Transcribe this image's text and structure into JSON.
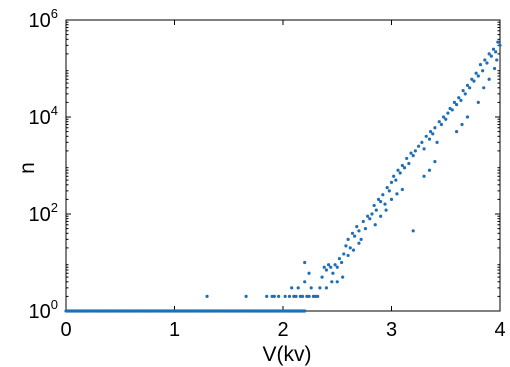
{
  "chart_data": {
    "type": "scatter",
    "title": "",
    "xlabel": "V(kv)",
    "ylabel": "n",
    "xlim": [
      0,
      4
    ],
    "ylim": [
      1,
      1000000
    ],
    "yscale": "log",
    "grid": false,
    "marker_color": "#1f6fb5",
    "xticks": [
      {
        "value": 0,
        "label": "0"
      },
      {
        "value": 1,
        "label": "1"
      },
      {
        "value": 2,
        "label": "2"
      },
      {
        "value": 3,
        "label": "3"
      },
      {
        "value": 4,
        "label": "4"
      }
    ],
    "yticks": [
      {
        "value": 1,
        "base": "10",
        "exp": "0"
      },
      {
        "value": 100,
        "base": "10",
        "exp": "2"
      },
      {
        "value": 10000,
        "base": "10",
        "exp": "4"
      },
      {
        "value": 1000000,
        "base": "10",
        "exp": "6"
      }
    ],
    "baseline": {
      "y": 1,
      "x_from": 0,
      "x_to": 2.2,
      "step": 0.01
    },
    "points": [
      [
        1.3,
        2
      ],
      [
        1.66,
        2
      ],
      [
        1.85,
        2
      ],
      [
        1.9,
        2
      ],
      [
        1.92,
        2
      ],
      [
        1.96,
        2
      ],
      [
        2.02,
        2
      ],
      [
        2.06,
        2
      ],
      [
        2.08,
        3
      ],
      [
        2.1,
        2
      ],
      [
        2.12,
        2
      ],
      [
        2.14,
        3
      ],
      [
        2.16,
        2
      ],
      [
        2.18,
        2
      ],
      [
        2.2,
        4
      ],
      [
        2.22,
        2
      ],
      [
        2.24,
        2
      ],
      [
        2.26,
        3
      ],
      [
        2.28,
        2
      ],
      [
        2.3,
        2
      ],
      [
        2.32,
        2
      ],
      [
        2.34,
        3
      ],
      [
        2.2,
        10
      ],
      [
        2.24,
        6
      ],
      [
        2.36,
        5
      ],
      [
        2.38,
        8
      ],
      [
        2.4,
        7
      ],
      [
        2.42,
        9
      ],
      [
        2.44,
        8
      ],
      [
        2.46,
        6
      ],
      [
        2.48,
        9
      ],
      [
        2.5,
        8
      ],
      [
        2.52,
        12
      ],
      [
        2.54,
        10
      ],
      [
        2.56,
        15
      ],
      [
        2.4,
        3
      ],
      [
        2.45,
        4
      ],
      [
        2.5,
        4
      ],
      [
        2.55,
        5
      ],
      [
        2.58,
        22
      ],
      [
        2.6,
        30
      ],
      [
        2.62,
        20
      ],
      [
        2.64,
        40
      ],
      [
        2.66,
        35
      ],
      [
        2.68,
        55
      ],
      [
        2.7,
        45
      ],
      [
        2.72,
        30
      ],
      [
        2.74,
        70
      ],
      [
        2.76,
        50
      ],
      [
        2.78,
        90
      ],
      [
        2.8,
        80
      ],
      [
        2.6,
        14
      ],
      [
        2.65,
        18
      ],
      [
        2.7,
        25
      ],
      [
        2.82,
        100
      ],
      [
        2.84,
        150
      ],
      [
        2.86,
        120
      ],
      [
        2.88,
        200
      ],
      [
        2.9,
        180
      ],
      [
        2.92,
        250
      ],
      [
        2.94,
        160
      ],
      [
        2.96,
        350
      ],
      [
        2.98,
        300
      ],
      [
        3.0,
        450
      ],
      [
        2.85,
        60
      ],
      [
        2.9,
        90
      ],
      [
        2.95,
        120
      ],
      [
        3.0,
        200
      ],
      [
        3.05,
        260
      ],
      [
        3.1,
        320
      ],
      [
        3.02,
        600
      ],
      [
        3.04,
        500
      ],
      [
        3.06,
        800
      ],
      [
        3.08,
        700
      ],
      [
        3.1,
        1000
      ],
      [
        3.12,
        900
      ],
      [
        3.14,
        1400
      ],
      [
        3.16,
        1100
      ],
      [
        3.18,
        1800
      ],
      [
        3.2,
        1600
      ],
      [
        3.22,
        2000
      ],
      [
        3.2,
        45
      ],
      [
        3.25,
        2500
      ],
      [
        3.28,
        3000
      ],
      [
        3.3,
        2200
      ],
      [
        3.32,
        4000
      ],
      [
        3.35,
        3500
      ],
      [
        3.36,
        5000
      ],
      [
        3.38,
        4500
      ],
      [
        3.4,
        6000
      ],
      [
        3.42,
        3000
      ],
      [
        3.44,
        8000
      ],
      [
        3.46,
        7000
      ],
      [
        3.48,
        10000
      ],
      [
        3.5,
        9000
      ],
      [
        3.52,
        12000
      ],
      [
        3.3,
        600
      ],
      [
        3.35,
        800
      ],
      [
        3.4,
        1200
      ],
      [
        3.54,
        15000
      ],
      [
        3.56,
        14000
      ],
      [
        3.58,
        20000
      ],
      [
        3.6,
        18000
      ],
      [
        3.62,
        25000
      ],
      [
        3.64,
        22000
      ],
      [
        3.66,
        35000
      ],
      [
        3.68,
        30000
      ],
      [
        3.7,
        45000
      ],
      [
        3.72,
        40000
      ],
      [
        3.6,
        5000
      ],
      [
        3.65,
        7000
      ],
      [
        3.7,
        10000
      ],
      [
        3.74,
        60000
      ],
      [
        3.76,
        55000
      ],
      [
        3.78,
        80000
      ],
      [
        3.8,
        70000
      ],
      [
        3.82,
        120000
      ],
      [
        3.84,
        90000
      ],
      [
        3.86,
        150000
      ],
      [
        3.88,
        130000
      ],
      [
        3.9,
        200000
      ],
      [
        3.92,
        180000
      ],
      [
        3.8,
        20000
      ],
      [
        3.85,
        40000
      ],
      [
        3.9,
        60000
      ],
      [
        3.94,
        250000
      ],
      [
        3.96,
        220000
      ],
      [
        3.98,
        350000
      ],
      [
        4.0,
        300000
      ],
      [
        3.95,
        100000
      ],
      [
        3.97,
        150000
      ]
    ]
  }
}
